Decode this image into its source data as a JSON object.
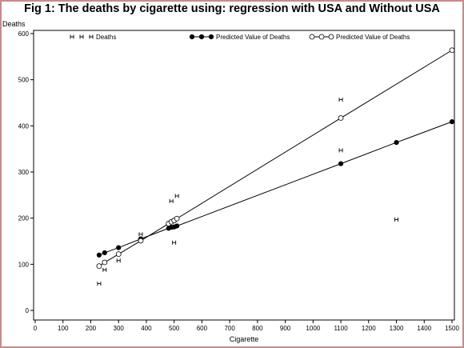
{
  "chart_data": {
    "type": "scatter",
    "title": "Fig 1: The deaths by cigarette using: regression with USA and Without USA",
    "xlabel": "Cigarette",
    "ylabel": "Deaths",
    "xlim": [
      0,
      1500
    ],
    "ylim": [
      0,
      600
    ],
    "xticks": [
      "0",
      "100",
      "200",
      "300",
      "400",
      "500",
      "600",
      "700",
      "800",
      "900",
      "1000",
      "1100",
      "1200",
      "1300",
      "1400",
      "1500"
    ],
    "yticks": [
      "0",
      "100",
      "200",
      "300",
      "400",
      "500",
      "600"
    ],
    "grid": false,
    "legend_position": "top",
    "series": [
      {
        "name": "Deaths",
        "marker": "H",
        "color": "#000000",
        "points": [
          {
            "x": 230,
            "y": 58
          },
          {
            "x": 250,
            "y": 88
          },
          {
            "x": 300,
            "y": 108
          },
          {
            "x": 380,
            "y": 165
          },
          {
            "x": 490,
            "y": 237
          },
          {
            "x": 510,
            "y": 248
          },
          {
            "x": 500,
            "y": 147
          },
          {
            "x": 1100,
            "y": 457
          },
          {
            "x": 1100,
            "y": 347
          },
          {
            "x": 1300,
            "y": 197
          }
        ]
      },
      {
        "name": "Predicted Value of Deaths",
        "marker": "filled-circle",
        "color": "#000000",
        "line": true,
        "points": [
          {
            "x": 230,
            "y": 120
          },
          {
            "x": 250,
            "y": 125
          },
          {
            "x": 300,
            "y": 136
          },
          {
            "x": 380,
            "y": 155
          },
          {
            "x": 480,
            "y": 178
          },
          {
            "x": 490,
            "y": 180
          },
          {
            "x": 500,
            "y": 181
          },
          {
            "x": 510,
            "y": 183
          },
          {
            "x": 1100,
            "y": 318
          },
          {
            "x": 1300,
            "y": 364
          },
          {
            "x": 1500,
            "y": 409
          }
        ]
      },
      {
        "name": "Predicted Value of Deaths",
        "marker": "C",
        "color": "#000000",
        "line": true,
        "points": [
          {
            "x": 230,
            "y": 96
          },
          {
            "x": 250,
            "y": 104
          },
          {
            "x": 300,
            "y": 122
          },
          {
            "x": 380,
            "y": 151
          },
          {
            "x": 480,
            "y": 188
          },
          {
            "x": 490,
            "y": 192
          },
          {
            "x": 500,
            "y": 195
          },
          {
            "x": 510,
            "y": 199
          },
          {
            "x": 1100,
            "y": 417
          },
          {
            "x": 1500,
            "y": 564
          }
        ]
      }
    ]
  }
}
